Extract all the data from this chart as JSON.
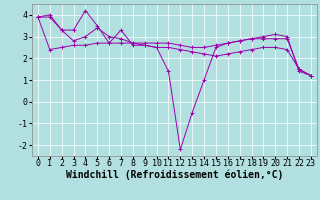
{
  "line1": {
    "x": [
      0,
      1,
      2,
      3,
      4,
      5,
      6,
      7,
      8,
      9,
      10,
      11,
      12,
      13,
      14,
      15,
      16,
      17,
      18,
      19,
      20,
      21,
      22,
      23
    ],
    "y": [
      3.9,
      4.0,
      3.3,
      3.3,
      4.2,
      3.5,
      2.7,
      3.3,
      2.6,
      2.6,
      2.5,
      1.4,
      -2.2,
      -0.5,
      1.0,
      2.5,
      2.7,
      2.8,
      2.9,
      3.0,
      3.1,
      3.0,
      1.4,
      1.2
    ]
  },
  "line2": {
    "x": [
      0,
      1,
      2,
      3,
      4,
      5,
      6,
      7,
      8,
      9,
      10,
      11,
      12,
      13,
      14,
      15,
      16,
      17,
      18,
      19,
      20,
      21,
      22,
      23
    ],
    "y": [
      3.9,
      2.4,
      2.5,
      2.6,
      2.6,
      2.7,
      2.7,
      2.7,
      2.7,
      2.7,
      2.7,
      2.7,
      2.6,
      2.5,
      2.5,
      2.6,
      2.7,
      2.8,
      2.9,
      2.9,
      2.9,
      2.9,
      1.5,
      1.2
    ]
  },
  "line3": {
    "x": [
      0,
      1,
      2,
      3,
      4,
      5,
      6,
      7,
      8,
      9,
      10,
      11,
      12,
      13,
      14,
      15,
      16,
      17,
      18,
      19,
      20,
      21,
      22,
      23
    ],
    "y": [
      3.9,
      3.9,
      3.3,
      2.8,
      3.0,
      3.4,
      3.0,
      2.9,
      2.7,
      2.6,
      2.5,
      2.5,
      2.4,
      2.3,
      2.2,
      2.1,
      2.2,
      2.3,
      2.4,
      2.5,
      2.5,
      2.4,
      1.5,
      1.2
    ]
  },
  "color": "#9900aa",
  "bg_color": "#b2e0e0",
  "grid_color": "#ffffff",
  "xlabel": "Windchill (Refroidissement éolien,°C)",
  "xlim": [
    -0.5,
    23.5
  ],
  "ylim": [
    -2.5,
    4.5
  ],
  "xticks": [
    0,
    1,
    2,
    3,
    4,
    5,
    6,
    7,
    8,
    9,
    10,
    11,
    12,
    13,
    14,
    15,
    16,
    17,
    18,
    19,
    20,
    21,
    22,
    23
  ],
  "yticks": [
    -2,
    -1,
    0,
    1,
    2,
    3,
    4
  ],
  "xlabel_fontsize": 7,
  "tick_fontsize": 6
}
